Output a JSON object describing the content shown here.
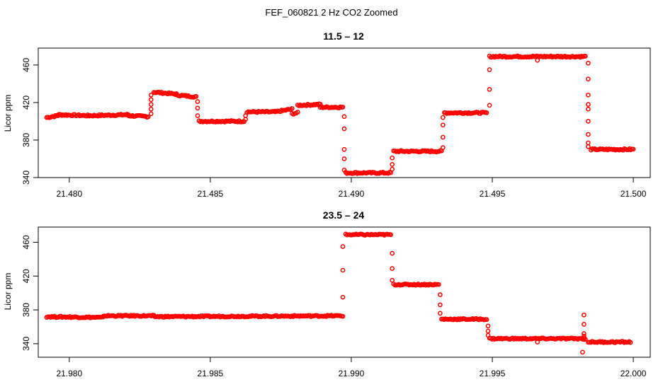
{
  "suptitle": "FEF_060821  2 Hz CO2 Zoomed",
  "chart_data": [
    {
      "type": "scatter",
      "title": "11.5 – 12",
      "xlabel": "",
      "ylabel": "Licor ppm",
      "xlim": [
        21.4789,
        21.5006
      ],
      "ylim": [
        340,
        478
      ],
      "x_ticks": [
        21.48,
        21.485,
        21.49,
        21.495,
        21.5
      ],
      "x_tick_labels": [
        "21.480",
        "21.485",
        "21.490",
        "21.495",
        "21.500"
      ],
      "y_ticks": [
        340,
        380,
        420,
        460
      ],
      "y_tick_labels": [
        "340",
        "380",
        "420",
        "460"
      ],
      "color": "#ff0000",
      "marker": "open-circle",
      "segments": [
        {
          "x_start": 21.4792,
          "x_end": 21.4796,
          "y_start": 404,
          "y_end": 406
        },
        {
          "x_start": 21.4796,
          "x_end": 21.4807,
          "y_start": 407,
          "y_end": 406
        },
        {
          "x_start": 21.4807,
          "x_end": 21.4821,
          "y_start": 406,
          "y_end": 407
        },
        {
          "x_start": 21.4821,
          "x_end": 21.4828,
          "y_start": 406,
          "y_end": 405
        },
        {
          "x_start": 21.483,
          "x_end": 21.4838,
          "y_start": 431,
          "y_end": 429
        },
        {
          "x_start": 21.4838,
          "x_end": 21.4845,
          "y_start": 428,
          "y_end": 426
        },
        {
          "x_start": 21.4846,
          "x_end": 21.4862,
          "y_start": 400,
          "y_end": 400
        },
        {
          "x_start": 21.4863,
          "x_end": 21.4873,
          "y_start": 410,
          "y_end": 410
        },
        {
          "x_start": 21.4873,
          "x_end": 21.4879,
          "y_start": 410,
          "y_end": 413
        },
        {
          "x_start": 21.4879,
          "x_end": 21.4881,
          "y_start": 408,
          "y_end": 409
        },
        {
          "x_start": 21.4881,
          "x_end": 21.4889,
          "y_start": 417,
          "y_end": 418
        },
        {
          "x_start": 21.4889,
          "x_end": 21.4897,
          "y_start": 415,
          "y_end": 415
        },
        {
          "x_start": 21.4898,
          "x_end": 21.4914,
          "y_start": 345,
          "y_end": 345
        },
        {
          "x_start": 21.4915,
          "x_end": 21.4932,
          "y_start": 368,
          "y_end": 368
        },
        {
          "x_start": 21.4933,
          "x_end": 21.4948,
          "y_start": 409,
          "y_end": 409
        },
        {
          "x_start": 21.4949,
          "x_end": 21.4983,
          "y_start": 469,
          "y_end": 469
        },
        {
          "x_start": 21.4985,
          "x_end": 21.5,
          "y_start": 370,
          "y_end": 370
        }
      ],
      "transitions": [
        {
          "x": 21.4829,
          "y": [
            408,
            413,
            418,
            423,
            428
          ]
        },
        {
          "x": 21.48455,
          "y": [
            421,
            414,
            406
          ]
        },
        {
          "x": 21.48625,
          "y": [
            402,
            406
          ]
        },
        {
          "x": 21.48975,
          "y": [
            405,
            392,
            370,
            360,
            348
          ]
        },
        {
          "x": 21.49145,
          "y": [
            349,
            354,
            361
          ]
        },
        {
          "x": 21.49325,
          "y": [
            372,
            383,
            396,
            404
          ]
        },
        {
          "x": 21.4949,
          "y": [
            417,
            434,
            455
          ]
        },
        {
          "x": 21.4984,
          "y": [
            462,
            445,
            428,
            418,
            413,
            400,
            386,
            377,
            373
          ]
        }
      ],
      "outliers": [
        {
          "x": 21.4966,
          "y": 465
        }
      ]
    },
    {
      "type": "scatter",
      "title": "23.5 – 24",
      "xlabel": "",
      "ylabel": "Licor ppm",
      "xlim": [
        21.9789,
        22.0006
      ],
      "ylim": [
        324,
        478
      ],
      "x_ticks": [
        21.98,
        21.985,
        21.99,
        21.995,
        22.0
      ],
      "x_tick_labels": [
        "21.980",
        "21.985",
        "21.990",
        "21.995",
        "22.000"
      ],
      "y_ticks": [
        340,
        380,
        420,
        460
      ],
      "y_tick_labels": [
        "340",
        "380",
        "420",
        "460"
      ],
      "color": "#ff0000",
      "marker": "open-circle",
      "segments": [
        {
          "x_start": 21.9792,
          "x_end": 21.9812,
          "y_start": 372,
          "y_end": 371
        },
        {
          "x_start": 21.9812,
          "x_end": 21.983,
          "y_start": 373,
          "y_end": 373
        },
        {
          "x_start": 21.983,
          "x_end": 21.9897,
          "y_start": 372,
          "y_end": 373
        },
        {
          "x_start": 21.9898,
          "x_end": 21.9914,
          "y_start": 469,
          "y_end": 469
        },
        {
          "x_start": 21.9915,
          "x_end": 21.9931,
          "y_start": 410,
          "y_end": 410
        },
        {
          "x_start": 21.9932,
          "x_end": 21.9948,
          "y_start": 369,
          "y_end": 369
        },
        {
          "x_start": 21.9949,
          "x_end": 21.9983,
          "y_start": 346,
          "y_end": 346
        },
        {
          "x_start": 21.9984,
          "x_end": 21.9999,
          "y_start": 342,
          "y_end": 342
        }
      ],
      "transitions": [
        {
          "x": 21.9897,
          "y": [
            395,
            427,
            455
          ]
        },
        {
          "x": 21.99145,
          "y": [
            447,
            429,
            415
          ]
        },
        {
          "x": 21.99315,
          "y": [
            398,
            386,
            376
          ]
        },
        {
          "x": 21.99485,
          "y": [
            361,
            355,
            350
          ]
        },
        {
          "x": 21.99825,
          "y": [
            374,
            363,
            352,
            349,
            345
          ]
        }
      ],
      "outliers": [
        {
          "x": 21.9982,
          "y": 330
        },
        {
          "x": 21.9966,
          "y": 342
        }
      ]
    }
  ]
}
